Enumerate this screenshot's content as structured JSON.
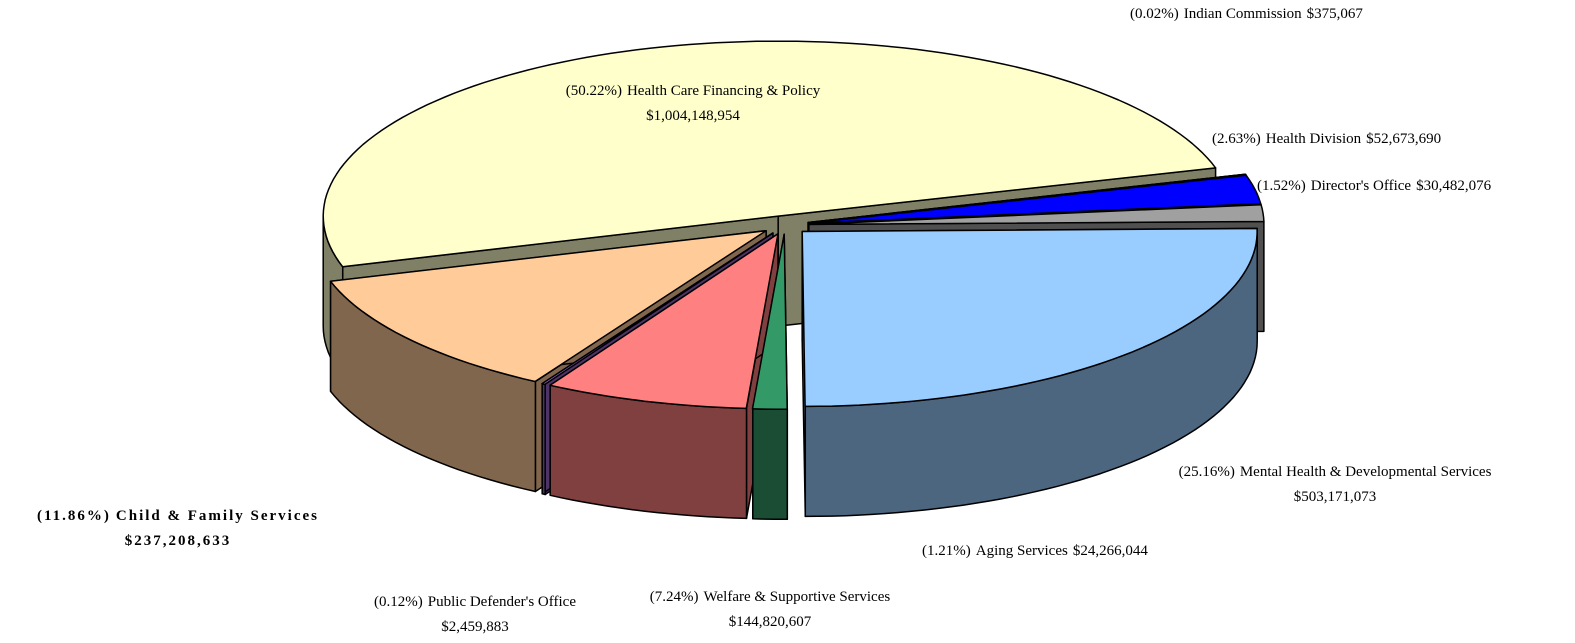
{
  "chart_data": {
    "type": "pie3d",
    "categories": [
      "Indian Commission",
      "Health Division",
      "Director's Office",
      "Mental Health & Developmental Services",
      "Aging Services",
      "Welfare & Supportive Services",
      "Public Defender's Office",
      "Child & Family Services",
      "Health Care Financing & Policy"
    ],
    "values": [
      375067,
      52673690,
      30482076,
      503171073,
      24266044,
      144820607,
      2459883,
      237208633,
      1004148954
    ],
    "value_labels": [
      "$375,067",
      "$52,673,690",
      "$30,482,076",
      "$503,171,073",
      "$24,266,044",
      "$144,820,607",
      "$2,459,883",
      "$237,208,633",
      "$1,004,148,954"
    ],
    "percents": [
      0.02,
      2.63,
      1.52,
      25.16,
      1.21,
      7.24,
      0.12,
      11.86,
      50.22
    ],
    "percent_labels": [
      "(0.02%)",
      "(2.63%)",
      "(1.52%)",
      "(25.16%)",
      "(1.21%)",
      "(7.24%)",
      "(0.12%)",
      "(11.86%)",
      "(50.22%)"
    ],
    "colors": [
      "#808060",
      "#0000ff",
      "#a0a0a0",
      "#99ccff",
      "#339966",
      "#ff8080",
      "#9966cc",
      "#ffcc99",
      "#ffffcc"
    ]
  }
}
